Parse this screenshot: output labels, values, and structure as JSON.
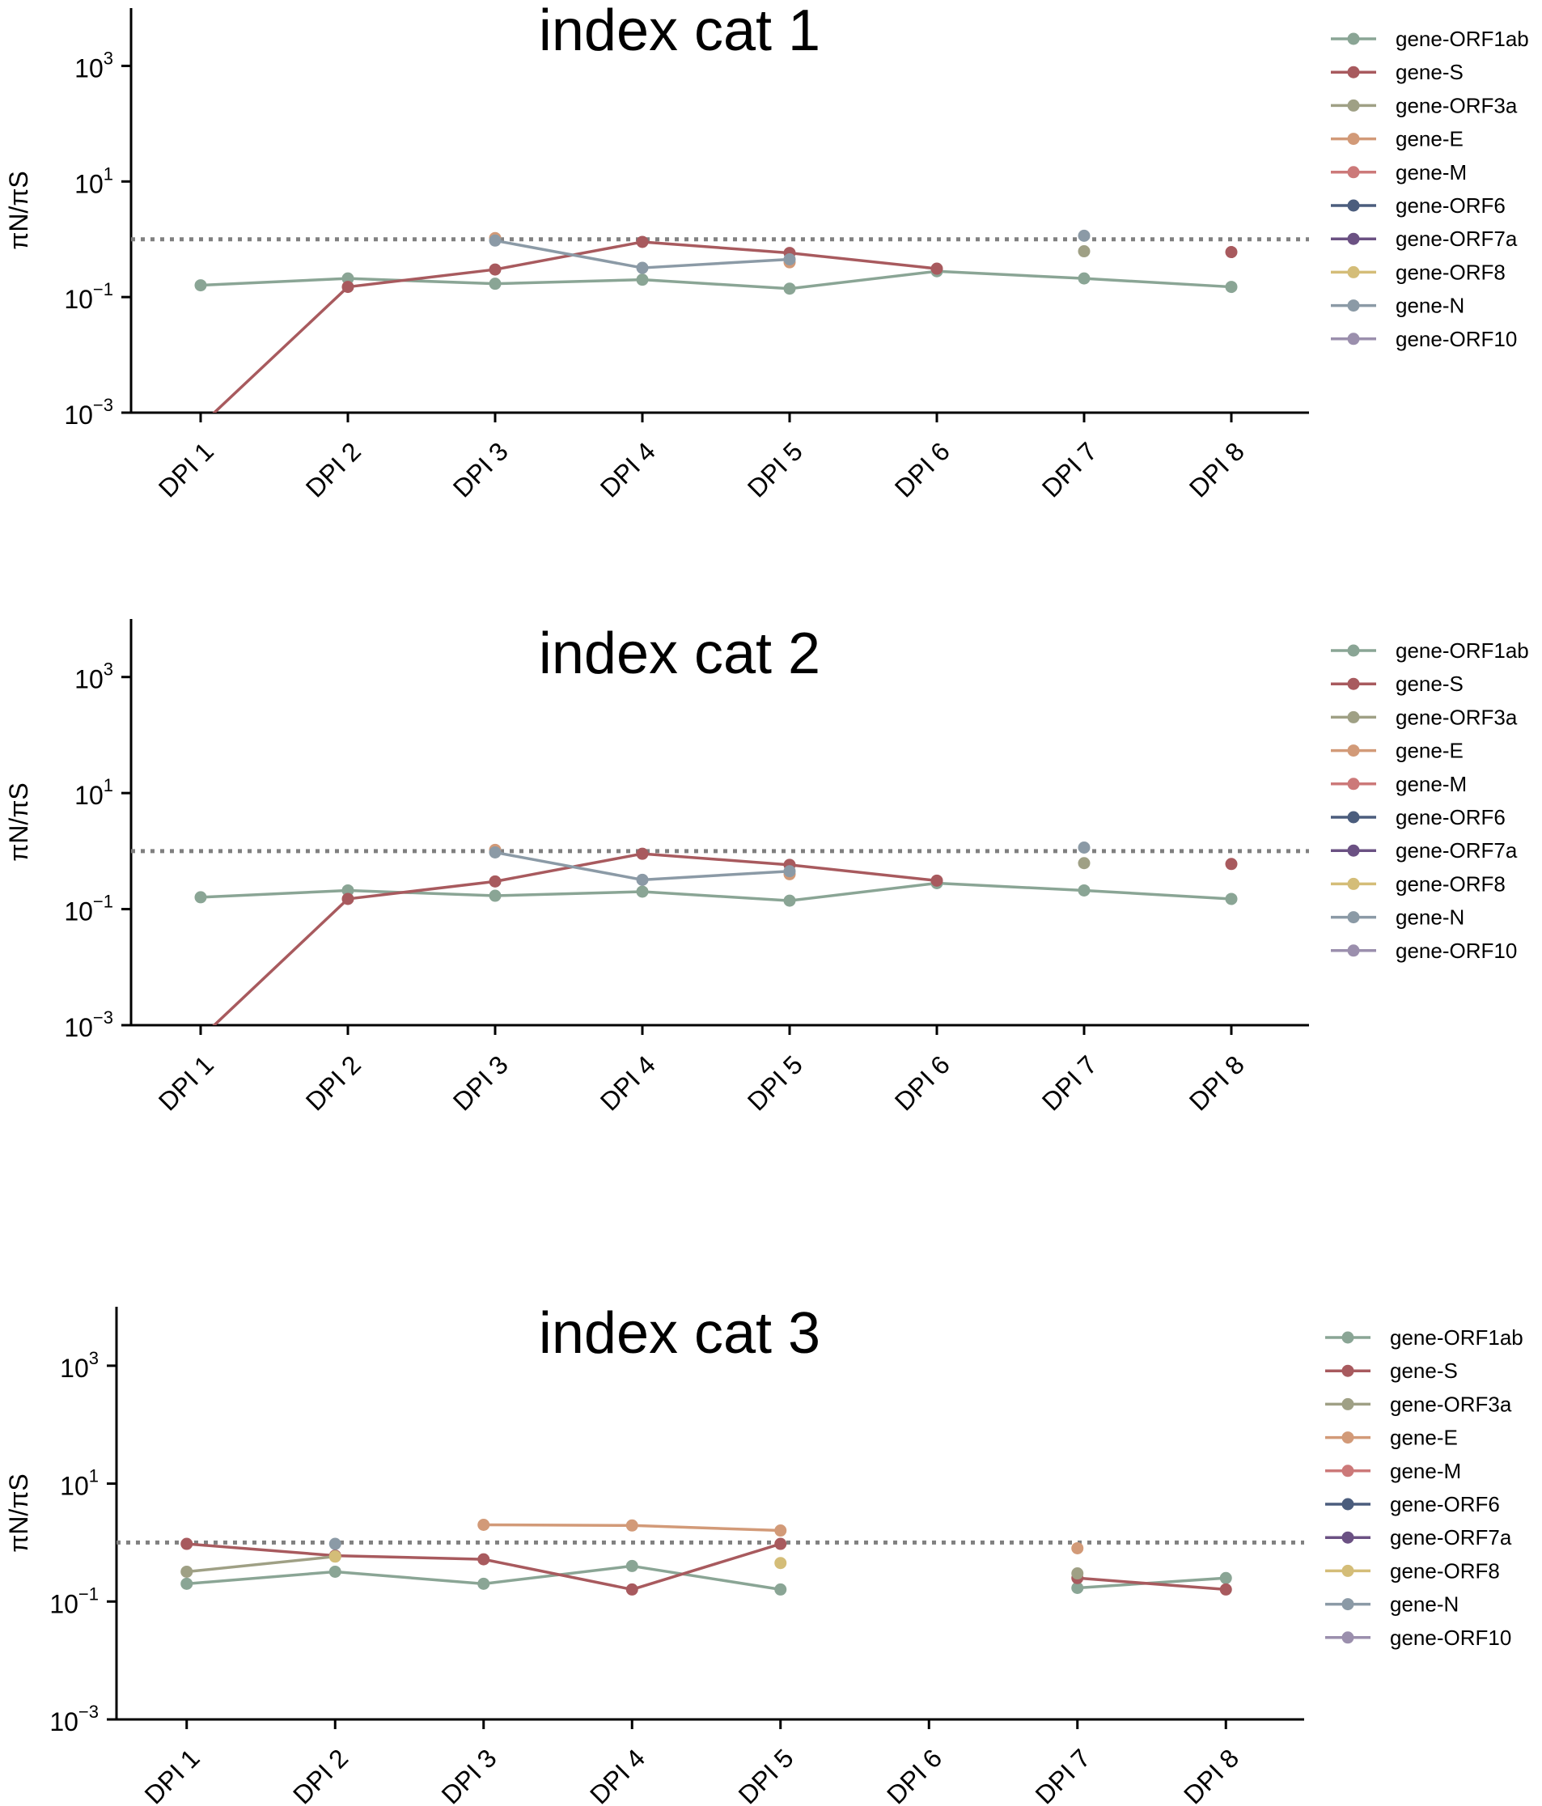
{
  "chart_data": [
    {
      "type": "line",
      "title": "index cat 1",
      "ylabel": "πN/πS",
      "yscale": "log",
      "ylim": [
        0.001,
        10000
      ],
      "yticks": [
        0.001,
        0.1,
        10,
        1000
      ],
      "ytick_labels": [
        {
          "base": "10",
          "exp": "−3"
        },
        {
          "base": "10",
          "exp": "−1"
        },
        {
          "base": "10",
          "exp": "1"
        },
        {
          "base": "10",
          "exp": "3"
        }
      ],
      "categories": [
        "DPI 1",
        "DPI 2",
        "DPI 3",
        "DPI 4",
        "DPI 5",
        "DPI 6",
        "DPI 7",
        "DPI 8"
      ],
      "reference_line": 1,
      "legend_position": "right",
      "series": [
        {
          "name": "gene-ORF1ab",
          "color": "#8aa595",
          "values": [
            0.16,
            0.21,
            0.17,
            0.2,
            0.14,
            0.28,
            0.21,
            0.15
          ]
        },
        {
          "name": "gene-S",
          "color": "#a85a5e",
          "values": [
            0.0006,
            0.15,
            0.3,
            0.9,
            0.58,
            0.31,
            null,
            0.6
          ]
        },
        {
          "name": "gene-ORF3a",
          "color": "#9fa085",
          "values": [
            null,
            null,
            null,
            null,
            null,
            null,
            0.62,
            null
          ]
        },
        {
          "name": "gene-E",
          "color": "#d29a78",
          "values": [
            null,
            null,
            1.05,
            null,
            0.4,
            null,
            null,
            null
          ]
        },
        {
          "name": "gene-M",
          "color": "#cc7979",
          "values": [
            null,
            null,
            null,
            null,
            null,
            null,
            null,
            null
          ]
        },
        {
          "name": "gene-ORF6",
          "color": "#4b5d7d",
          "values": [
            null,
            null,
            null,
            null,
            null,
            null,
            null,
            null
          ]
        },
        {
          "name": "gene-ORF7a",
          "color": "#6b5183",
          "values": [
            null,
            null,
            null,
            null,
            null,
            null,
            null,
            null
          ]
        },
        {
          "name": "gene-ORF8",
          "color": "#d4bd78",
          "values": [
            null,
            null,
            null,
            null,
            null,
            null,
            null,
            null
          ]
        },
        {
          "name": "gene-N",
          "color": "#8b9aa6",
          "values": [
            null,
            null,
            0.95,
            0.32,
            0.45,
            null,
            1.15,
            null
          ]
        },
        {
          "name": "gene-ORF10",
          "color": "#9b8fad",
          "values": [
            null,
            null,
            null,
            null,
            null,
            null,
            null,
            null
          ]
        }
      ]
    },
    {
      "type": "line",
      "title": "index cat 2",
      "ylabel": "πN/πS",
      "yscale": "log",
      "ylim": [
        0.001,
        10000
      ],
      "yticks": [
        0.001,
        0.1,
        10,
        1000
      ],
      "ytick_labels": [
        {
          "base": "10",
          "exp": "−3"
        },
        {
          "base": "10",
          "exp": "−1"
        },
        {
          "base": "10",
          "exp": "1"
        },
        {
          "base": "10",
          "exp": "3"
        }
      ],
      "categories": [
        "DPI 1",
        "DPI 2",
        "DPI 3",
        "DPI 4",
        "DPI 5",
        "DPI 6",
        "DPI 7",
        "DPI 8"
      ],
      "reference_line": 1,
      "legend_position": "right",
      "series": [
        {
          "name": "gene-ORF1ab",
          "color": "#8aa595",
          "values": [
            0.16,
            0.21,
            0.17,
            0.2,
            0.14,
            0.28,
            0.21,
            0.15
          ]
        },
        {
          "name": "gene-S",
          "color": "#a85a5e",
          "values": [
            0.0006,
            0.15,
            0.3,
            0.9,
            0.58,
            0.31,
            null,
            0.6
          ]
        },
        {
          "name": "gene-ORF3a",
          "color": "#9fa085",
          "values": [
            null,
            null,
            null,
            null,
            null,
            null,
            0.62,
            null
          ]
        },
        {
          "name": "gene-E",
          "color": "#d29a78",
          "values": [
            null,
            null,
            1.05,
            null,
            0.4,
            null,
            null,
            null
          ]
        },
        {
          "name": "gene-M",
          "color": "#cc7979",
          "values": [
            null,
            null,
            null,
            null,
            null,
            null,
            null,
            null
          ]
        },
        {
          "name": "gene-ORF6",
          "color": "#4b5d7d",
          "values": [
            null,
            null,
            null,
            null,
            null,
            null,
            null,
            null
          ]
        },
        {
          "name": "gene-ORF7a",
          "color": "#6b5183",
          "values": [
            null,
            null,
            null,
            null,
            null,
            null,
            null,
            null
          ]
        },
        {
          "name": "gene-ORF8",
          "color": "#d4bd78",
          "values": [
            null,
            null,
            null,
            null,
            null,
            null,
            null,
            null
          ]
        },
        {
          "name": "gene-N",
          "color": "#8b9aa6",
          "values": [
            null,
            null,
            0.95,
            0.32,
            0.45,
            null,
            1.15,
            null
          ]
        },
        {
          "name": "gene-ORF10",
          "color": "#9b8fad",
          "values": [
            null,
            null,
            null,
            null,
            null,
            null,
            null,
            null
          ]
        }
      ]
    },
    {
      "type": "line",
      "title": "index cat 3",
      "ylabel": "πN/πS",
      "yscale": "log",
      "ylim": [
        0.001,
        10000
      ],
      "yticks": [
        0.001,
        0.1,
        10,
        1000
      ],
      "ytick_labels": [
        {
          "base": "10",
          "exp": "−3"
        },
        {
          "base": "10",
          "exp": "−1"
        },
        {
          "base": "10",
          "exp": "1"
        },
        {
          "base": "10",
          "exp": "3"
        }
      ],
      "categories": [
        "DPI 1",
        "DPI 2",
        "DPI 3",
        "DPI 4",
        "DPI 5",
        "DPI 6",
        "DPI 7",
        "DPI 8"
      ],
      "reference_line": 1,
      "legend_position": "right",
      "series": [
        {
          "name": "gene-ORF1ab",
          "color": "#8aa595",
          "values": [
            0.2,
            0.32,
            0.2,
            0.4,
            0.16,
            null,
            0.17,
            0.25
          ]
        },
        {
          "name": "gene-S",
          "color": "#a85a5e",
          "values": [
            0.95,
            0.6,
            0.52,
            0.16,
            0.95,
            null,
            0.25,
            0.16
          ]
        },
        {
          "name": "gene-ORF3a",
          "color": "#9fa085",
          "values": [
            0.32,
            0.58,
            null,
            null,
            null,
            null,
            0.3,
            null
          ]
        },
        {
          "name": "gene-E",
          "color": "#d29a78",
          "values": [
            null,
            null,
            2.0,
            1.95,
            1.6,
            null,
            0.8,
            null
          ]
        },
        {
          "name": "gene-M",
          "color": "#cc7979",
          "values": [
            null,
            null,
            null,
            null,
            null,
            null,
            null,
            null
          ]
        },
        {
          "name": "gene-ORF6",
          "color": "#4b5d7d",
          "values": [
            null,
            null,
            null,
            null,
            null,
            null,
            null,
            null
          ]
        },
        {
          "name": "gene-ORF7a",
          "color": "#6b5183",
          "values": [
            null,
            null,
            null,
            null,
            null,
            null,
            null,
            null
          ]
        },
        {
          "name": "gene-ORF8",
          "color": "#d4bd78",
          "values": [
            null,
            0.58,
            null,
            null,
            0.45,
            null,
            null,
            null
          ]
        },
        {
          "name": "gene-N",
          "color": "#8b9aa6",
          "values": [
            null,
            0.95,
            null,
            null,
            null,
            null,
            null,
            null
          ]
        },
        {
          "name": "gene-ORF10",
          "color": "#9b8fad",
          "values": [
            null,
            null,
            null,
            null,
            null,
            null,
            null,
            null
          ]
        }
      ]
    }
  ]
}
